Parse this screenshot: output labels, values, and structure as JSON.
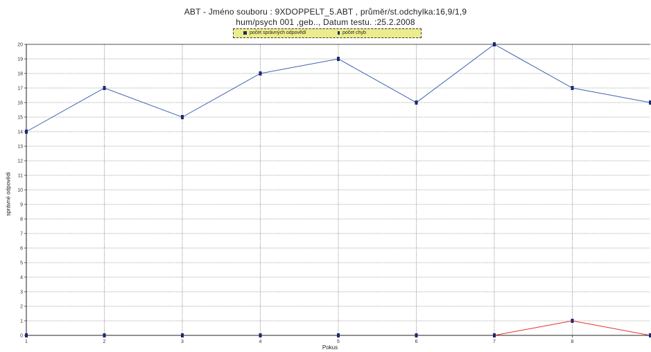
{
  "chart_data": {
    "type": "line",
    "title": "ABT - Jméno souboru : 9XDOPPELT_5.ABT ,   průměr/st.odchylka:16,9/1,9",
    "subtitle": "hum/psych 001 ,geb.., Datum testu. :25.2.2008",
    "xlabel": "Pokus",
    "ylabel": "správné odpovědi",
    "x": [
      1,
      2,
      3,
      4,
      5,
      6,
      7,
      8,
      9
    ],
    "xlim": [
      1,
      9
    ],
    "ylim": [
      0,
      20
    ],
    "xticks": [
      "1",
      "2",
      "3",
      "4",
      "5",
      "6",
      "7",
      "8"
    ],
    "yticks": [
      "0",
      "1",
      "2",
      "3",
      "4",
      "5",
      "6",
      "7",
      "8",
      "9",
      "10",
      "11",
      "12",
      "13",
      "14",
      "15",
      "16",
      "17",
      "18",
      "19",
      "20"
    ],
    "grid": true,
    "legend_position": "top-center",
    "series": [
      {
        "name": "počet správných odpovědí",
        "color": "#3a5fb0",
        "values": [
          14,
          17,
          15,
          18,
          19,
          16,
          20,
          17,
          16
        ]
      },
      {
        "name": "počet chyb",
        "color": "#e03030",
        "values": [
          0,
          0,
          0,
          0,
          0,
          0,
          0,
          1,
          0
        ]
      }
    ]
  }
}
